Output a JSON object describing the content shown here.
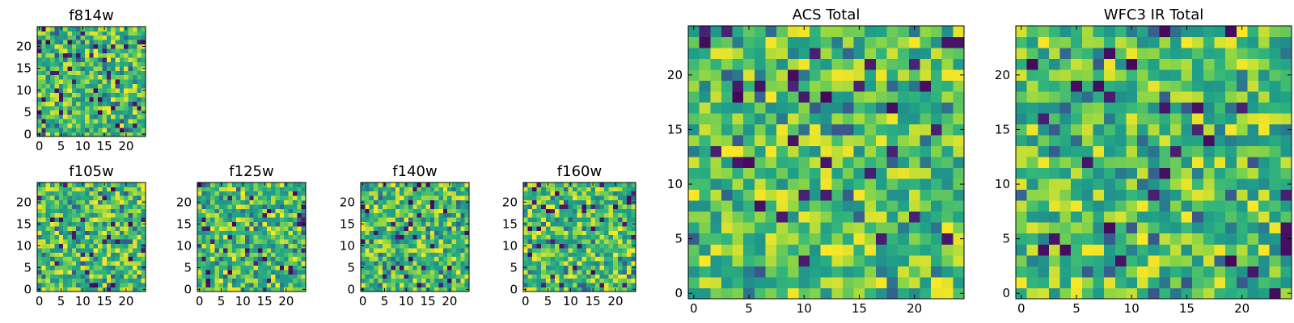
{
  "chart_data": [
    {
      "type": "heatmap",
      "title": "f814w",
      "xlabel": "",
      "ylabel": "",
      "grid_size": [
        25,
        25
      ],
      "xticks": [
        0,
        5,
        10,
        15,
        20
      ],
      "yticks": [
        0,
        5,
        10,
        15,
        20
      ],
      "xlim": [
        -0.5,
        24.5
      ],
      "ylim": [
        -0.5,
        24.5
      ],
      "colormap": "viridis",
      "values_note": "random-noise pixel image; value range approx 0-1",
      "seed": 814
    },
    {
      "type": "heatmap",
      "title": "f105w",
      "xlabel": "",
      "ylabel": "",
      "grid_size": [
        25,
        25
      ],
      "xticks": [
        0,
        5,
        10,
        15,
        20
      ],
      "yticks": [
        0,
        5,
        10,
        15,
        20
      ],
      "xlim": [
        -0.5,
        24.5
      ],
      "ylim": [
        -0.5,
        24.5
      ],
      "colormap": "viridis",
      "seed": 105
    },
    {
      "type": "heatmap",
      "title": "f125w",
      "xlabel": "",
      "ylabel": "",
      "grid_size": [
        25,
        25
      ],
      "xticks": [
        0,
        5,
        10,
        15,
        20
      ],
      "yticks": [
        0,
        5,
        10,
        15,
        20
      ],
      "xlim": [
        -0.5,
        24.5
      ],
      "ylim": [
        -0.5,
        24.5
      ],
      "colormap": "viridis",
      "seed": 125
    },
    {
      "type": "heatmap",
      "title": "f140w",
      "xlabel": "",
      "ylabel": "",
      "grid_size": [
        25,
        25
      ],
      "xticks": [
        0,
        5,
        10,
        15,
        20
      ],
      "yticks": [
        0,
        5,
        10,
        15,
        20
      ],
      "xlim": [
        -0.5,
        24.5
      ],
      "ylim": [
        -0.5,
        24.5
      ],
      "colormap": "viridis",
      "seed": 140
    },
    {
      "type": "heatmap",
      "title": "f160w",
      "xlabel": "",
      "ylabel": "",
      "grid_size": [
        25,
        25
      ],
      "xticks": [
        0,
        5,
        10,
        15,
        20
      ],
      "yticks": [
        0,
        5,
        10,
        15,
        20
      ],
      "xlim": [
        -0.5,
        24.5
      ],
      "ylim": [
        -0.5,
        24.5
      ],
      "colormap": "viridis",
      "seed": 160
    },
    {
      "type": "heatmap",
      "title": "ACS Total",
      "xlabel": "",
      "ylabel": "",
      "grid_size": [
        25,
        25
      ],
      "xticks": [
        0,
        5,
        10,
        15,
        20
      ],
      "yticks": [
        0,
        5,
        10,
        15,
        20
      ],
      "xlim": [
        -0.5,
        24.5
      ],
      "ylim": [
        -0.5,
        24.5
      ],
      "colormap": "viridis",
      "seed": 1001
    },
    {
      "type": "heatmap",
      "title": "WFC3 IR Total",
      "xlabel": "",
      "ylabel": "",
      "grid_size": [
        25,
        25
      ],
      "xticks": [
        0,
        5,
        10,
        15,
        20
      ],
      "yticks": [
        0,
        5,
        10,
        15,
        20
      ],
      "xlim": [
        -0.5,
        24.5
      ],
      "ylim": [
        -0.5,
        24.5
      ],
      "colormap": "viridis",
      "seed": 2002
    }
  ]
}
